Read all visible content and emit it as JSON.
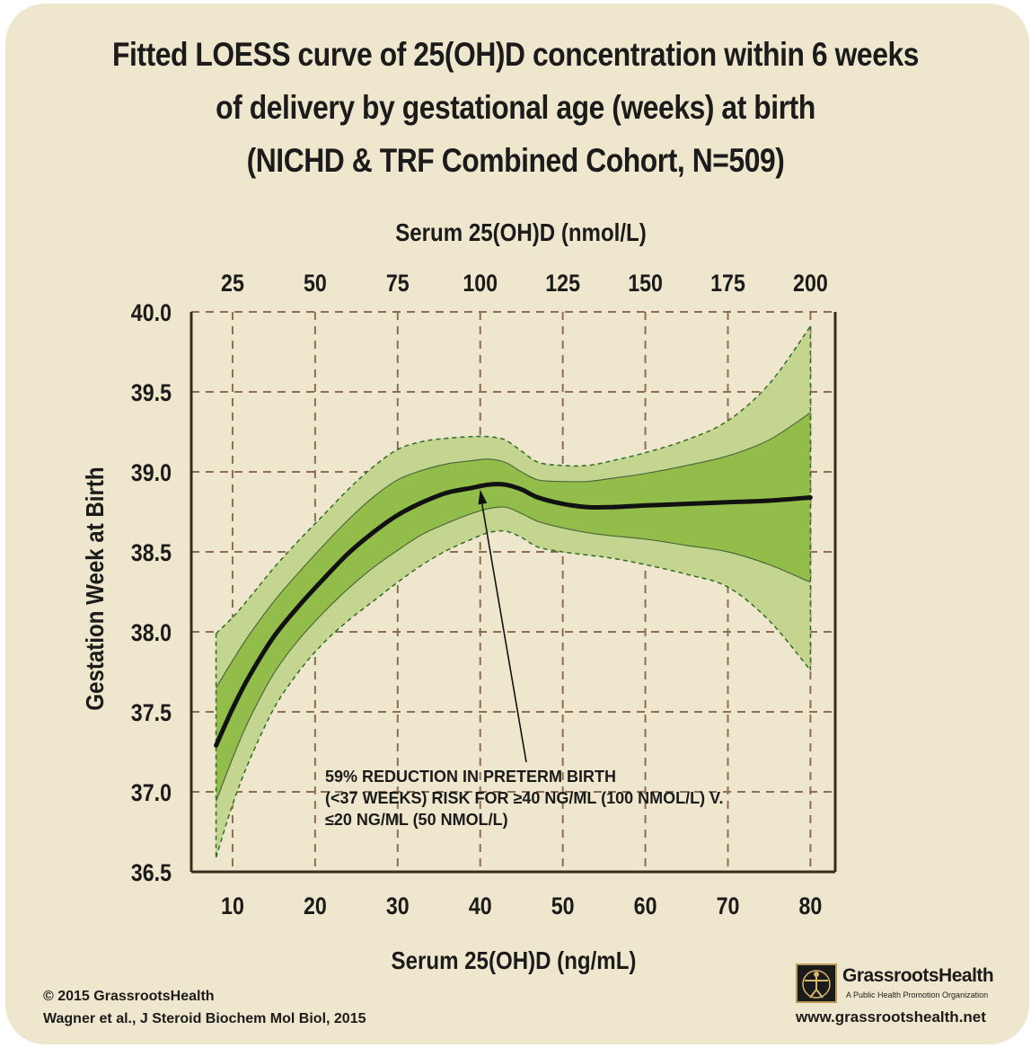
{
  "title": {
    "line1": "Fitted LOESS curve of 25(OH)D concentration within 6 weeks",
    "line2": "of delivery by gestational age (weeks) at birth",
    "line3": "(NICHD & TRF Combined Cohort, N=509)"
  },
  "chart_data": {
    "type": "line",
    "title": "Fitted LOESS curve of 25(OH)D concentration within 6 weeks of delivery by gestational age (weeks) at birth (NICHD & TRF Combined Cohort, N=509)",
    "xlabel": "Serum 25(OH)D (ng/mL)",
    "x2label": "Serum 25(OH)D (nmol/L)",
    "ylabel": "Gestation Week at Birth",
    "xlim": [
      5,
      83
    ],
    "ylim": [
      36.5,
      40.0
    ],
    "xticks": [
      "10",
      "20",
      "30",
      "40",
      "50",
      "60",
      "70",
      "80"
    ],
    "xtick_values": [
      10,
      20,
      30,
      40,
      50,
      60,
      70,
      80
    ],
    "x2ticks": [
      "25",
      "50",
      "75",
      "100",
      "125",
      "150",
      "175",
      "200"
    ],
    "x2tick_values": [
      10,
      20,
      30,
      40,
      50,
      60,
      70,
      80
    ],
    "yticks": [
      "36.5",
      "37.0",
      "37.5",
      "38.0",
      "38.5",
      "39.0",
      "39.5",
      "40.0"
    ],
    "ytick_values": [
      36.5,
      37.0,
      37.5,
      38.0,
      38.5,
      39.0,
      39.5,
      40.0
    ],
    "grid": true,
    "x": [
      8,
      10,
      12,
      15,
      18,
      21,
      24,
      27,
      30,
      33,
      36,
      39,
      41,
      43,
      45,
      47,
      50,
      53,
      56,
      60,
      65,
      70,
      75,
      80
    ],
    "series": [
      {
        "name": "LOESS fit",
        "values": [
          37.29,
          37.52,
          37.72,
          37.97,
          38.16,
          38.33,
          38.49,
          38.62,
          38.73,
          38.81,
          38.87,
          38.9,
          38.92,
          38.92,
          38.89,
          38.84,
          38.8,
          38.78,
          38.78,
          38.79,
          38.8,
          38.81,
          38.82,
          38.84
        ]
      },
      {
        "name": "Inner band upper",
        "values": [
          37.65,
          37.82,
          37.98,
          38.19,
          38.37,
          38.54,
          38.7,
          38.84,
          38.95,
          39.01,
          39.05,
          39.07,
          39.08,
          39.06,
          39.0,
          38.95,
          38.94,
          38.94,
          38.96,
          38.99,
          39.04,
          39.1,
          39.2,
          39.37
        ]
      },
      {
        "name": "Inner band lower",
        "values": [
          36.94,
          37.21,
          37.45,
          37.74,
          37.95,
          38.12,
          38.27,
          38.4,
          38.51,
          38.61,
          38.68,
          38.74,
          38.77,
          38.78,
          38.74,
          38.69,
          38.65,
          38.62,
          38.6,
          38.58,
          38.54,
          38.5,
          38.42,
          38.31
        ]
      },
      {
        "name": "Outer band upper",
        "values": [
          37.99,
          38.09,
          38.21,
          38.4,
          38.57,
          38.73,
          38.89,
          39.03,
          39.14,
          39.19,
          39.21,
          39.22,
          39.22,
          39.2,
          39.13,
          39.06,
          39.04,
          39.04,
          39.07,
          39.12,
          39.2,
          39.32,
          39.55,
          39.91
        ]
      },
      {
        "name": "Outer band lower",
        "values": [
          36.59,
          36.92,
          37.19,
          37.52,
          37.75,
          37.93,
          38.07,
          38.19,
          38.31,
          38.42,
          38.51,
          38.58,
          38.62,
          38.63,
          38.59,
          38.53,
          38.5,
          38.48,
          38.46,
          38.42,
          38.36,
          38.28,
          38.07,
          37.76
        ]
      }
    ],
    "annotation": {
      "lines": [
        "59% REDUCTION IN PRETERM BIRTH",
        "(<37 WEEKS) RISK FOR ≥40 NG/ML (100 NMOL/L) V.",
        "≤20 NG/ML (50 NMOL/L)"
      ],
      "arrow_to_x": 40,
      "arrow_to_y": 38.9
    },
    "colors": {
      "outer_band": "#c3d58f",
      "inner_band": "#93bd4b",
      "fit_line": "#111111",
      "band_edge": "#2f6b2a",
      "grid": "#8c6f53",
      "axis": "#3b2a1e"
    }
  },
  "footer": {
    "copyright": "© 2015 GrassrootsHealth",
    "citation": "Wagner et al., J Steroid Biochem Mol Biol, 2015",
    "logo_name": "GrassrootsHealth",
    "logo_tagline": "A Public Health Promotion Organization",
    "website": "www.grassrootshealth.net"
  },
  "logo_icon": "vitruvian-man-icon"
}
